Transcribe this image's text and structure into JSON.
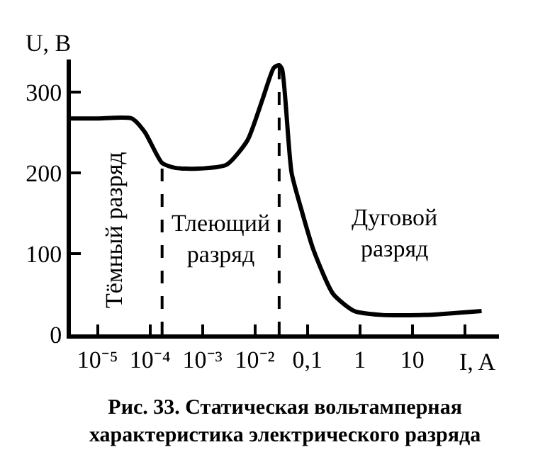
{
  "chart_data": {
    "type": "line",
    "title": "Рис. 33. Статическая вольтамперная\nхарактеристика электрического разряда",
    "xlabel": "I, A",
    "ylabel": "U, B",
    "log": "x",
    "xlim": [
      3.1e-06,
      450
    ],
    "ylim": [
      0,
      340
    ],
    "xticks": [
      {
        "value": 1e-05,
        "label": "10⁻⁵"
      },
      {
        "value": 0.0001,
        "label": "10⁻⁴"
      },
      {
        "value": 0.001,
        "label": "10⁻³"
      },
      {
        "value": 0.01,
        "label": "10⁻²"
      },
      {
        "value": 0.1,
        "label": "0,1"
      },
      {
        "value": 1,
        "label": "1"
      },
      {
        "value": 10,
        "label": "10"
      },
      {
        "value": 100,
        "label": null
      }
    ],
    "yticks": [
      0,
      100,
      200,
      300
    ],
    "marker": "none",
    "series": [
      {
        "color": "#000000",
        "line_style": "solid",
        "x": [
          3.1e-06,
          1e-05,
          4.5e-05,
          8e-05,
          0.00017,
          0.0003,
          0.00083,
          0.0029,
          0.0072,
          0.014,
          0.023,
          0.029,
          0.033,
          0.05,
          0.078,
          0.13,
          0.31,
          0.78,
          2.7,
          17,
          210
        ],
        "values": [
          267,
          267,
          267,
          250,
          212,
          206,
          205,
          210,
          240,
          291,
          330,
          333,
          328,
          200,
          153,
          105,
          50,
          29,
          24,
          24,
          29
        ]
      },
      {
        "color": "#000000",
        "line_style": "dashed",
        "x": [
          0.00017,
          0.00017
        ],
        "values": [
          0,
          212
        ]
      },
      {
        "color": "#000000",
        "line_style": "dashed",
        "x": [
          0.029,
          0.029
        ],
        "values": [
          0,
          333
        ]
      }
    ],
    "annotations": [
      "Тёмный разряд",
      "Тлеющий\nразряд",
      "Дуговой\nразряд"
    ]
  }
}
